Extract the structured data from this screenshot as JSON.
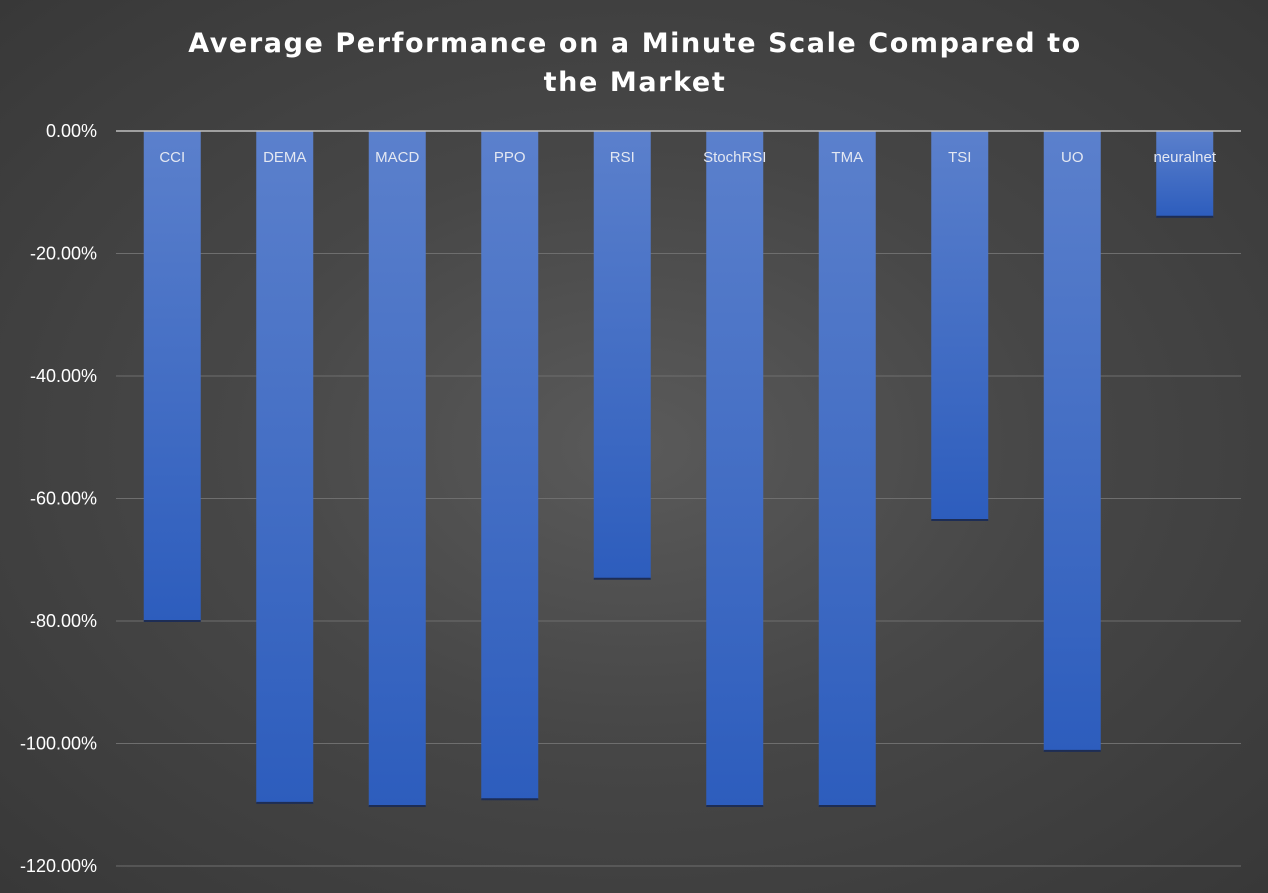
{
  "chart_data": {
    "type": "bar",
    "title": "Average Performance on a Minute Scale Compared to the Market",
    "xlabel": "",
    "ylabel": "",
    "categories": [
      "CCI",
      "DEMA",
      "MACD",
      "PPO",
      "RSI",
      "StochRSI",
      "TMA",
      "TSI",
      "UO",
      "neuralnet"
    ],
    "values": [
      -80.0,
      -109.7,
      -110.2,
      -109.1,
      -73.1,
      -110.2,
      -110.2,
      -63.5,
      -101.2,
      -14.0
    ],
    "value_format": "percent_2dp",
    "ylim": [
      -120,
      0
    ],
    "y_ticks": [
      0,
      -20,
      -40,
      -60,
      -80,
      -100,
      -120
    ],
    "y_tick_labels": [
      "0.00%",
      "-20.00%",
      "-40.00%",
      "-60.00%",
      "-80.00%",
      "-100.00%",
      "-120.00%"
    ],
    "grid": true,
    "legend": "none",
    "colors": {
      "bar_top": "#5b80cc",
      "bar_bottom": "#2d5dbd",
      "gridline": "#6e6e6e",
      "zero_line": "#bfbfbf",
      "text": "#ffffff"
    }
  }
}
